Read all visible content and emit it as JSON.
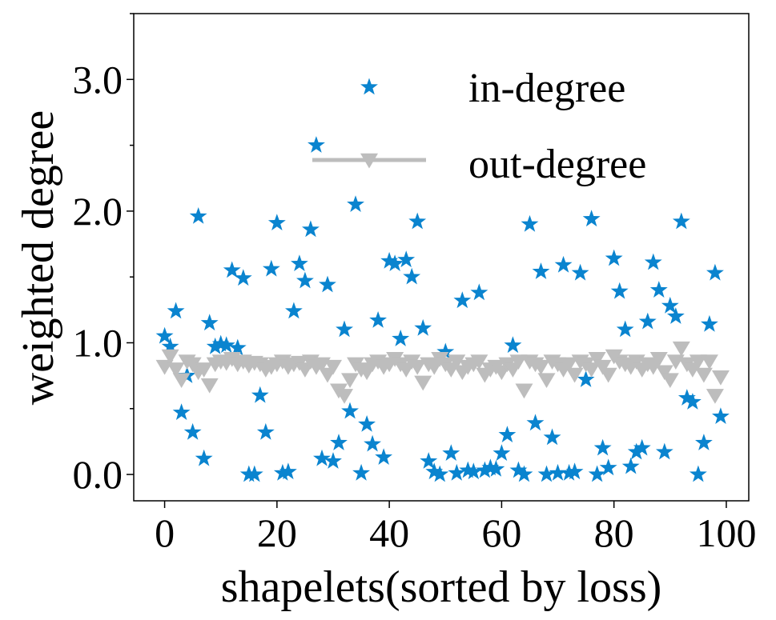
{
  "chart_data": {
    "type": "scatter",
    "title": "",
    "xlabel": "shapelets(sorted by loss)",
    "ylabel": "weighted degree",
    "xlim": [
      -5.5,
      104
    ],
    "ylim": [
      -0.2,
      3.5
    ],
    "xticks": [
      0,
      20,
      40,
      60,
      80,
      100
    ],
    "xtick_labels": [
      "0",
      "20",
      "40",
      "60",
      "80",
      "100"
    ],
    "yticks": [
      0.0,
      1.0,
      2.0,
      3.0
    ],
    "ytick_labels": [
      "0.0",
      "1.0",
      "2.0",
      "3.0"
    ],
    "legend": {
      "position": "top-right",
      "entries": [
        {
          "label": "in-degree",
          "marker": "star",
          "color": "#0a84cf"
        },
        {
          "label": "out-degree",
          "marker": "triangle-down-line",
          "color": "#bdbdbd"
        }
      ]
    },
    "series": [
      {
        "name": "in-degree",
        "marker": "star",
        "color": "#0a84cf",
        "x": [
          0,
          1,
          2,
          3,
          4,
          5,
          6,
          7,
          8,
          9,
          10,
          11,
          12,
          13,
          14,
          15,
          16,
          17,
          18,
          19,
          20,
          21,
          22,
          23,
          24,
          25,
          26,
          27,
          28,
          29,
          30,
          31,
          32,
          33,
          34,
          35,
          36,
          37,
          38,
          39,
          40,
          41,
          42,
          43,
          44,
          45,
          46,
          47,
          48,
          49,
          50,
          51,
          52,
          53,
          54,
          55,
          56,
          57,
          58,
          59,
          60,
          61,
          62,
          63,
          64,
          65,
          66,
          67,
          68,
          69,
          70,
          71,
          72,
          73,
          74,
          75,
          76,
          77,
          78,
          79,
          80,
          81,
          82,
          83,
          84,
          85,
          86,
          87,
          88,
          89,
          90,
          91,
          92,
          93,
          94,
          95,
          96,
          97,
          98,
          99
        ],
        "y": [
          1.05,
          0.97,
          1.24,
          0.47,
          0.75,
          0.32,
          1.96,
          0.12,
          1.15,
          0.97,
          0.99,
          0.98,
          1.55,
          0.96,
          1.49,
          0.0,
          0.0,
          0.6,
          0.32,
          1.56,
          1.91,
          0.01,
          0.02,
          1.24,
          1.6,
          1.47,
          1.86,
          2.5,
          0.12,
          1.44,
          0.1,
          0.24,
          1.1,
          0.48,
          2.05,
          0.01,
          0.38,
          0.23,
          1.17,
          0.13,
          1.62,
          1.6,
          1.03,
          1.63,
          1.5,
          1.92,
          1.11,
          0.1,
          0.02,
          0.0,
          0.93,
          0.16,
          0.01,
          1.32,
          0.03,
          0.02,
          1.38,
          0.03,
          0.05,
          0.04,
          0.16,
          0.3,
          0.98,
          0.03,
          0.0,
          1.9,
          0.39,
          1.54,
          0.0,
          0.28,
          0.01,
          1.59,
          0.01,
          0.02,
          1.53,
          0.72,
          1.94,
          0.0,
          0.2,
          0.05,
          1.64,
          1.39,
          1.1,
          0.06,
          0.17,
          0.2,
          1.16,
          1.61,
          1.4,
          0.17,
          1.28,
          1.2,
          1.92,
          0.58,
          0.55,
          0.0,
          0.24,
          1.14,
          1.53,
          0.44
        ]
      },
      {
        "name": "out-degree",
        "marker": "triangle-down-line",
        "color": "#bdbdbd",
        "x": [
          0,
          1,
          2,
          3,
          4,
          5,
          6,
          7,
          8,
          9,
          10,
          11,
          12,
          13,
          14,
          15,
          16,
          17,
          18,
          19,
          20,
          21,
          22,
          23,
          24,
          25,
          26,
          27,
          28,
          29,
          30,
          31,
          32,
          33,
          34,
          35,
          36,
          37,
          38,
          39,
          40,
          41,
          42,
          43,
          44,
          45,
          46,
          47,
          48,
          49,
          50,
          51,
          52,
          53,
          54,
          55,
          56,
          57,
          58,
          59,
          60,
          61,
          62,
          63,
          64,
          65,
          66,
          67,
          68,
          69,
          70,
          71,
          72,
          73,
          74,
          75,
          76,
          77,
          78,
          79,
          80,
          81,
          82,
          83,
          84,
          85,
          86,
          87,
          88,
          89,
          90,
          91,
          92,
          93,
          94,
          95,
          96,
          97,
          98,
          99
        ],
        "y": [
          0.82,
          0.9,
          0.8,
          0.72,
          0.86,
          0.84,
          0.78,
          0.8,
          0.68,
          0.84,
          0.86,
          0.85,
          0.88,
          0.84,
          0.86,
          0.83,
          0.85,
          0.84,
          0.8,
          0.82,
          0.84,
          0.86,
          0.82,
          0.84,
          0.85,
          0.8,
          0.86,
          0.82,
          0.84,
          0.76,
          0.82,
          0.64,
          0.6,
          0.72,
          0.84,
          0.8,
          0.78,
          0.84,
          0.86,
          0.82,
          0.84,
          0.88,
          0.84,
          0.8,
          0.86,
          0.82,
          0.7,
          0.84,
          0.82,
          0.88,
          0.84,
          0.8,
          0.86,
          0.78,
          0.82,
          0.84,
          0.86,
          0.76,
          0.8,
          0.82,
          0.78,
          0.84,
          0.8,
          0.86,
          0.64,
          0.86,
          0.84,
          0.82,
          0.72,
          0.86,
          0.84,
          0.8,
          0.84,
          0.76,
          0.86,
          0.84,
          0.8,
          0.88,
          0.82,
          0.76,
          0.9,
          0.86,
          0.84,
          0.82,
          0.86,
          0.8,
          0.84,
          0.82,
          0.88,
          0.78,
          0.72,
          0.86,
          0.96,
          0.84,
          0.8,
          0.86,
          0.76,
          0.86,
          0.6,
          0.74
        ]
      }
    ]
  }
}
